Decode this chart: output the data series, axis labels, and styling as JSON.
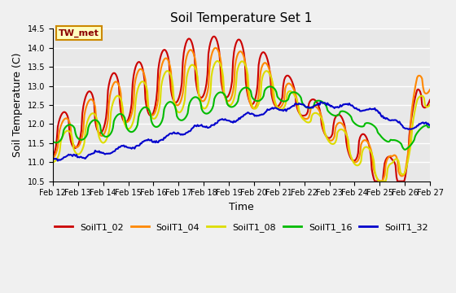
{
  "title": "Soil Temperature Set 1",
  "xlabel": "Time",
  "ylabel": "Soil Temperature (C)",
  "ylim": [
    10.5,
    14.5
  ],
  "annotation": "TW_met",
  "plot_bg_color": "#e8e8e8",
  "fig_bg_color": "#f0f0f0",
  "series_colors": {
    "SoilT1_02": "#cc0000",
    "SoilT1_04": "#ff8800",
    "SoilT1_08": "#dddd00",
    "SoilT1_16": "#00bb00",
    "SoilT1_32": "#0000cc"
  },
  "x_tick_labels": [
    "Feb 12",
    "Feb 13",
    "Feb 14",
    "Feb 15",
    "Feb 16",
    "Feb 17",
    "Feb 18",
    "Feb 19",
    "Feb 20",
    "Feb 21",
    "Feb 22",
    "Feb 23",
    "Feb 24",
    "Feb 25",
    "Feb 26",
    "Feb 27"
  ],
  "legend_labels": [
    "SoilT1_02",
    "SoilT1_04",
    "SoilT1_08",
    "SoilT1_16",
    "SoilT1_32"
  ],
  "linewidth": 1.5,
  "title_fontsize": 11,
  "axis_fontsize": 9,
  "tick_fontsize": 7,
  "legend_fontsize": 8
}
